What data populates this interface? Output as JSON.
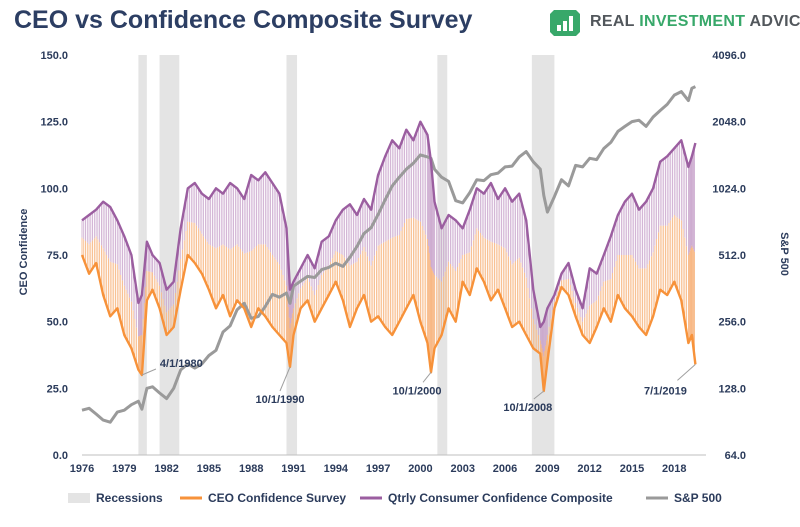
{
  "title": "CEO vs Confidence Composite Survey",
  "brand": {
    "prefix": "REAL ",
    "accent": "INVESTMENT",
    "suffix": " ADVICE",
    "icon": "bar-chart-logo-icon",
    "color": "#38a86a"
  },
  "chart_data": {
    "type": "line",
    "ylabel": "CEO Confidence",
    "y2label": "S&P 500",
    "ylim": [
      0,
      150
    ],
    "y_ticks": [
      "0.0",
      "25.0",
      "50.0",
      "75.0",
      "100.0",
      "125.0",
      "150.0"
    ],
    "y2_scale": "log2",
    "y2lim": [
      64,
      4096
    ],
    "y2_ticks": [
      "64.0",
      "128.0",
      "256.0",
      "512.0",
      "1024.0",
      "2048.0",
      "4096.0"
    ],
    "xlim": [
      1976,
      2020.25
    ],
    "x_ticks": [
      "1976",
      "1979",
      "1982",
      "1985",
      "1988",
      "1991",
      "1994",
      "1997",
      "2000",
      "2003",
      "2006",
      "2009",
      "2012",
      "2015",
      "2018"
    ],
    "recessions": [
      [
        1980.0,
        1980.6
      ],
      [
        1981.5,
        1982.9
      ],
      [
        1990.5,
        1991.25
      ],
      [
        2001.2,
        2001.9
      ],
      [
        2007.9,
        2009.5
      ]
    ],
    "annotations": [
      "4/1/1980",
      "10/1/1990",
      "10/1/2000",
      "10/1/2008",
      "7/1/2019"
    ],
    "legend": [
      "Recessions",
      "CEO Confidence Survey",
      "Qtrly Consumer Confidence Composite",
      "S&P 500"
    ],
    "colors": {
      "recession": "#e4e4e4",
      "ceo": "#f7923a",
      "consumer": "#9b5ea0",
      "spx": "#9a9a9a",
      "text": "#2b3b5b",
      "title": "#2c3e63"
    },
    "series": [
      {
        "name": "CEO Confidence Survey",
        "x": [
          1976.0,
          1976.5,
          1977.0,
          1977.5,
          1978.0,
          1978.5,
          1979.0,
          1979.5,
          1980.0,
          1980.25,
          1980.6,
          1981.0,
          1981.5,
          1982.0,
          1982.5,
          1983.0,
          1983.5,
          1984.0,
          1984.5,
          1985.0,
          1985.5,
          1986.0,
          1986.5,
          1987.0,
          1987.5,
          1988.0,
          1988.5,
          1989.0,
          1989.5,
          1990.0,
          1990.5,
          1990.75,
          1991.0,
          1991.5,
          1992.0,
          1992.5,
          1993.0,
          1993.5,
          1994.0,
          1994.5,
          1995.0,
          1995.5,
          1996.0,
          1996.5,
          1997.0,
          1997.5,
          1998.0,
          1998.5,
          1999.0,
          1999.5,
          2000.0,
          2000.5,
          2000.75,
          2001.0,
          2001.5,
          2002.0,
          2002.5,
          2003.0,
          2003.5,
          2004.0,
          2004.5,
          2005.0,
          2005.5,
          2006.0,
          2006.5,
          2007.0,
          2007.5,
          2008.0,
          2008.5,
          2008.75,
          2009.0,
          2009.5,
          2010.0,
          2010.5,
          2011.0,
          2011.5,
          2012.0,
          2012.5,
          2013.0,
          2013.5,
          2014.0,
          2014.5,
          2015.0,
          2015.5,
          2016.0,
          2016.5,
          2017.0,
          2017.5,
          2018.0,
          2018.5,
          2019.0,
          2019.25,
          2019.5
        ],
        "values": [
          75,
          68,
          72,
          60,
          52,
          55,
          45,
          40,
          32,
          30,
          58,
          62,
          55,
          45,
          48,
          62,
          75,
          72,
          68,
          62,
          55,
          60,
          52,
          58,
          55,
          48,
          55,
          52,
          48,
          45,
          42,
          33,
          45,
          55,
          58,
          50,
          55,
          60,
          65,
          58,
          48,
          55,
          60,
          50,
          52,
          48,
          45,
          50,
          55,
          60,
          50,
          42,
          31,
          40,
          45,
          55,
          50,
          65,
          60,
          70,
          65,
          58,
          62,
          55,
          48,
          50,
          45,
          40,
          38,
          24,
          35,
          55,
          63,
          60,
          52,
          45,
          42,
          48,
          55,
          50,
          60,
          55,
          52,
          48,
          45,
          52,
          62,
          60,
          65,
          58,
          42,
          45,
          34
        ]
      },
      {
        "name": "Qtrly Consumer Confidence Composite",
        "x": [
          1976.0,
          1976.5,
          1977.0,
          1977.5,
          1978.0,
          1978.5,
          1979.0,
          1979.5,
          1980.0,
          1980.25,
          1980.6,
          1981.0,
          1981.5,
          1982.0,
          1982.5,
          1983.0,
          1983.5,
          1984.0,
          1984.5,
          1985.0,
          1985.5,
          1986.0,
          1986.5,
          1987.0,
          1987.5,
          1988.0,
          1988.5,
          1989.0,
          1989.5,
          1990.0,
          1990.5,
          1990.75,
          1991.0,
          1991.5,
          1992.0,
          1992.5,
          1993.0,
          1993.5,
          1994.0,
          1994.5,
          1995.0,
          1995.5,
          1996.0,
          1996.5,
          1997.0,
          1997.5,
          1998.0,
          1998.5,
          1999.0,
          1999.5,
          2000.0,
          2000.5,
          2000.75,
          2001.0,
          2001.5,
          2002.0,
          2002.5,
          2003.0,
          2003.5,
          2004.0,
          2004.5,
          2005.0,
          2005.5,
          2006.0,
          2006.5,
          2007.0,
          2007.5,
          2008.0,
          2008.5,
          2008.75,
          2009.0,
          2009.5,
          2010.0,
          2010.5,
          2011.0,
          2011.5,
          2012.0,
          2012.5,
          2013.0,
          2013.5,
          2014.0,
          2014.5,
          2015.0,
          2015.5,
          2016.0,
          2016.5,
          2017.0,
          2017.5,
          2018.0,
          2018.5,
          2019.0,
          2019.25,
          2019.5
        ],
        "values": [
          88,
          90,
          92,
          95,
          93,
          88,
          82,
          75,
          57,
          60,
          80,
          75,
          72,
          62,
          65,
          85,
          100,
          102,
          98,
          96,
          100,
          98,
          102,
          100,
          96,
          105,
          103,
          106,
          102,
          98,
          85,
          62,
          65,
          70,
          75,
          70,
          80,
          82,
          88,
          92,
          94,
          90,
          96,
          92,
          105,
          112,
          118,
          115,
          122,
          118,
          125,
          120,
          110,
          95,
          85,
          90,
          88,
          85,
          92,
          100,
          98,
          102,
          96,
          100,
          95,
          98,
          88,
          62,
          48,
          50,
          55,
          60,
          68,
          72,
          62,
          55,
          70,
          68,
          75,
          82,
          90,
          95,
          98,
          92,
          95,
          100,
          110,
          112,
          115,
          118,
          108,
          112,
          117
        ]
      },
      {
        "name": "S&P 500",
        "x": [
          1976.0,
          1976.5,
          1977.0,
          1977.5,
          1978.0,
          1978.5,
          1979.0,
          1979.5,
          1980.0,
          1980.25,
          1980.6,
          1981.0,
          1981.5,
          1982.0,
          1982.5,
          1983.0,
          1983.5,
          1984.0,
          1984.5,
          1985.0,
          1985.5,
          1986.0,
          1986.5,
          1987.0,
          1987.5,
          1988.0,
          1988.5,
          1989.0,
          1989.5,
          1990.0,
          1990.5,
          1990.75,
          1991.0,
          1991.5,
          1992.0,
          1992.5,
          1993.0,
          1993.5,
          1994.0,
          1994.5,
          1995.0,
          1995.5,
          1996.0,
          1996.5,
          1997.0,
          1997.5,
          1998.0,
          1998.5,
          1999.0,
          1999.5,
          2000.0,
          2000.5,
          2000.75,
          2001.0,
          2001.5,
          2002.0,
          2002.5,
          2003.0,
          2003.5,
          2004.0,
          2004.5,
          2005.0,
          2005.5,
          2006.0,
          2006.5,
          2007.0,
          2007.5,
          2008.0,
          2008.5,
          2008.75,
          2009.0,
          2009.5,
          2010.0,
          2010.5,
          2011.0,
          2011.5,
          2012.0,
          2012.5,
          2013.0,
          2013.5,
          2014.0,
          2014.5,
          2015.0,
          2015.5,
          2016.0,
          2016.5,
          2017.0,
          2017.5,
          2018.0,
          2018.5,
          2019.0,
          2019.25,
          2019.5
        ],
        "values": [
          102,
          104,
          98,
          92,
          90,
          100,
          102,
          108,
          112,
          103,
          128,
          130,
          122,
          115,
          128,
          155,
          165,
          158,
          165,
          180,
          190,
          230,
          245,
          290,
          310,
          265,
          270,
          300,
          340,
          330,
          345,
          310,
          370,
          390,
          410,
          405,
          440,
          450,
          470,
          455,
          500,
          560,
          640,
          680,
          780,
          910,
          1050,
          1150,
          1250,
          1330,
          1450,
          1420,
          1400,
          1250,
          1150,
          1100,
          900,
          880,
          980,
          1120,
          1110,
          1180,
          1200,
          1280,
          1290,
          1420,
          1500,
          1350,
          1250,
          950,
          800,
          940,
          1120,
          1050,
          1300,
          1280,
          1400,
          1380,
          1550,
          1650,
          1850,
          1950,
          2050,
          2080,
          1950,
          2150,
          2300,
          2450,
          2700,
          2800,
          2550,
          2900,
          2950
        ]
      }
    ]
  }
}
